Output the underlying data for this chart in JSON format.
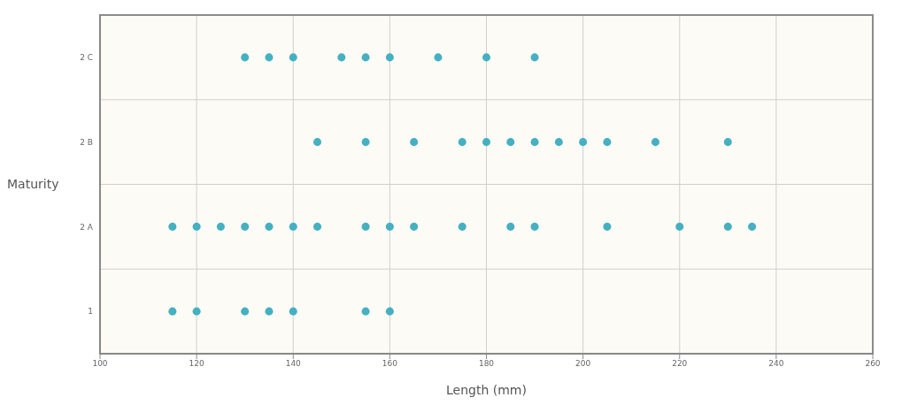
{
  "chart_data": {
    "type": "scatter",
    "orientation": "horizontal",
    "xlabel": "Length (mm)",
    "ylabel": "Maturity",
    "categories": [
      "2 C",
      "2 B",
      "2 A",
      "1"
    ],
    "xlim": [
      100,
      260
    ],
    "xticks": [
      100,
      120,
      140,
      160,
      180,
      200,
      220,
      240,
      260
    ],
    "grid": true,
    "marker": "circle",
    "series": [
      {
        "color": "#45b0c2",
        "x": [
          "2 C",
          "2 C",
          "2 C",
          "2 C",
          "2 C",
          "2 C",
          "2 C",
          "2 C",
          "2 C",
          "2 B",
          "2 B",
          "2 B",
          "2 B",
          "2 B",
          "2 B",
          "2 B",
          "2 B",
          "2 B",
          "2 B",
          "2 B",
          "2 B",
          "2 A",
          "2 A",
          "2 A",
          "2 A",
          "2 A",
          "2 A",
          "2 A",
          "2 A",
          "2 A",
          "2 A",
          "2 A",
          "2 A",
          "2 A",
          "2 A",
          "2 A",
          "2 A",
          "2 A",
          "1",
          "1",
          "1",
          "1",
          "1",
          "1",
          "1"
        ],
        "values": [
          130,
          135,
          140,
          150,
          155,
          160,
          170,
          180,
          190,
          145,
          155,
          165,
          175,
          180,
          185,
          190,
          195,
          200,
          205,
          215,
          230,
          115,
          120,
          125,
          130,
          135,
          140,
          145,
          155,
          160,
          165,
          175,
          185,
          190,
          205,
          220,
          230,
          235,
          115,
          120,
          130,
          135,
          140,
          155,
          160
        ]
      }
    ]
  }
}
